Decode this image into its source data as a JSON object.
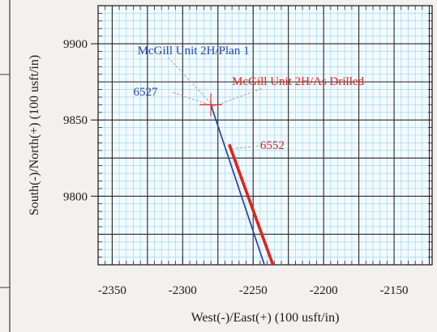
{
  "chart_data": {
    "type": "line",
    "title": "",
    "xlabel": "West(-)/East(+) (100 usft/in)",
    "ylabel": "South(-)/North(+) (100 usft/in)",
    "xlim": [
      -2360,
      -2123
    ],
    "ylim": [
      9755,
      9925
    ],
    "x_ticks": [
      -2350,
      -2300,
      -2250,
      -2200,
      -2150
    ],
    "y_ticks": [
      9800,
      9850,
      9900
    ],
    "x_tick_labels": [
      "-2350",
      "-2300",
      "-2250",
      "-2200",
      "-2150"
    ],
    "y_tick_labels": [
      "9800",
      "9850",
      "9900"
    ],
    "grid": true,
    "colors": {
      "plan": "#2a3fa8",
      "as_drilled": "#e3221b",
      "major_grid": "#262626",
      "minor_grid": "#8fd3f0",
      "plot_bg": "#f3fafd",
      "callout": "#9a9a9a"
    },
    "series": [
      {
        "name": "McGill Unit 2H/Plan 1",
        "x": [
          -2280,
          -2242
        ],
        "y": [
          9860,
          9755
        ]
      },
      {
        "name": "McGill Unit 2H/As Drilled",
        "x": [
          -2267,
          -2236
        ],
        "y": [
          9834,
          9755
        ]
      }
    ],
    "annotations": [
      {
        "text": "McGill Unit 2H/Plan 1",
        "series": 0,
        "x": -2332,
        "y": 9893,
        "anchor_x": -2278,
        "anchor_y": 9859
      },
      {
        "text": "McGill Unit 2H/As Drilled",
        "series": 1,
        "x": -2265,
        "y": 9873,
        "anchor_x": -2278,
        "anchor_y": 9859
      },
      {
        "text": "6527",
        "series": 0,
        "x": -2335,
        "y": 9866,
        "anchor_x": -2278,
        "anchor_y": 9859
      },
      {
        "text": "6552",
        "series": 1,
        "x": -2245,
        "y": 9831,
        "anchor_x": -2265,
        "anchor_y": 9831
      }
    ],
    "marker": {
      "type": "crosshair",
      "x": -2280,
      "y": 9860
    }
  }
}
